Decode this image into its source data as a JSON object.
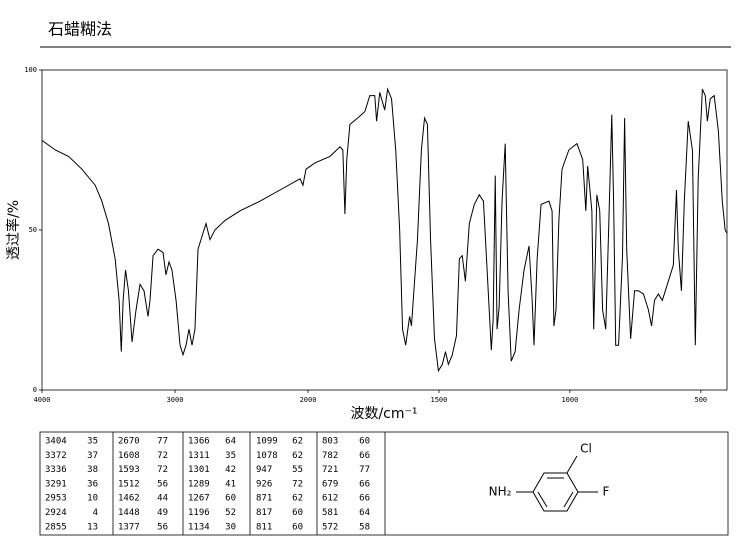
{
  "title": "石蜡糊法",
  "chart_data": {
    "type": "line",
    "xlabel": "波数/cm⁻¹",
    "ylabel": "透过率/%",
    "xlim": [
      4000,
      400
    ],
    "ylim": [
      0,
      100
    ],
    "x_scale_change": 2000,
    "xticks": [
      4000,
      3000,
      2000,
      1500,
      1000,
      500
    ],
    "yticks": [
      0,
      50,
      100
    ],
    "color": "#000000",
    "x": [
      4000,
      3900,
      3800,
      3700,
      3600,
      3550,
      3500,
      3450,
      3420,
      3404,
      3390,
      3372,
      3350,
      3323,
      3293,
      3263,
      3233,
      3203,
      3188,
      3165,
      3128,
      3090,
      3068,
      3045,
      3023,
      2992,
      2962,
      2940,
      2917,
      2895,
      2872,
      2850,
      2827,
      2797,
      2767,
      2737,
      2700,
      2624,
      2511,
      2361,
      2211,
      2060,
      2038,
      2015,
      1973,
      1916,
      1878,
      1867,
      1859,
      1852,
      1840,
      1810,
      1783,
      1764,
      1745,
      1738,
      1726,
      1707,
      1696,
      1681,
      1665,
      1650,
      1639,
      1627,
      1612,
      1605,
      1582,
      1567,
      1555,
      1544,
      1532,
      1517,
      1502,
      1487,
      1475,
      1464,
      1449,
      1433,
      1422,
      1411,
      1399,
      1384,
      1365,
      1346,
      1330,
      1308,
      1300,
      1293,
      1285,
      1278,
      1270,
      1259,
      1247,
      1236,
      1224,
      1209,
      1194,
      1175,
      1156,
      1144,
      1137,
      1125,
      1110,
      1080,
      1068,
      1061,
      1053,
      1042,
      1030,
      1004,
      973,
      951,
      939,
      932,
      916,
      909,
      897,
      886,
      875,
      863,
      852,
      840,
      833,
      825,
      814,
      799,
      791,
      783,
      768,
      753,
      738,
      719,
      700,
      688,
      677,
      662,
      647,
      624,
      605,
      593,
      586,
      574,
      563,
      548,
      532,
      521,
      510,
      494,
      483,
      475,
      464,
      449,
      433,
      418,
      407,
      400
    ],
    "values": [
      78,
      75,
      73,
      69,
      64,
      59,
      52,
      41,
      28,
      12,
      28,
      37.5,
      31,
      15,
      25,
      33,
      31,
      23,
      28,
      42,
      44,
      43,
      36,
      40,
      37.5,
      28,
      14,
      11,
      14,
      19,
      14,
      19,
      44,
      48,
      52,
      47,
      50,
      53,
      56,
      59,
      62.5,
      66,
      64,
      69,
      71,
      73,
      76,
      75,
      55,
      72,
      83,
      85,
      87,
      92,
      92,
      84,
      93,
      87.5,
      94,
      91,
      75,
      50,
      19,
      14,
      23,
      20,
      47,
      75,
      85,
      83,
      47,
      16,
      6,
      8,
      12,
      8,
      11,
      17,
      41,
      42,
      34,
      52,
      58,
      61,
      59,
      25,
      12.5,
      22,
      67,
      19,
      26,
      59,
      77,
      31,
      9,
      12,
      25,
      37.5,
      45,
      28,
      14,
      41,
      58,
      59,
      56,
      20,
      25,
      53,
      69,
      75,
      77,
      72,
      56,
      70,
      56,
      19,
      61,
      56,
      25,
      19,
      50,
      86,
      59,
      14,
      14,
      42,
      85,
      44,
      16,
      31,
      31,
      30,
      25,
      20,
      28,
      30,
      28,
      34,
      39,
      62.5,
      44,
      31,
      59,
      84,
      75,
      14,
      66,
      94,
      92,
      84,
      91,
      92,
      81,
      59,
      50,
      49
    ]
  },
  "peak_table": {
    "columns": [
      [
        [
          3404,
          35
        ],
        [
          3372,
          37
        ],
        [
          3336,
          38
        ],
        [
          3291,
          36
        ],
        [
          2953,
          10
        ],
        [
          2924,
          4
        ],
        [
          2855,
          13
        ]
      ],
      [
        [
          2670,
          77
        ],
        [
          1608,
          72
        ],
        [
          1593,
          72
        ],
        [
          1512,
          56
        ],
        [
          1462,
          44
        ],
        [
          1448,
          49
        ],
        [
          1377,
          56
        ]
      ],
      [
        [
          1366,
          64
        ],
        [
          1311,
          35
        ],
        [
          1301,
          42
        ],
        [
          1289,
          41
        ],
        [
          1267,
          60
        ],
        [
          1196,
          52
        ],
        [
          1134,
          30
        ]
      ],
      [
        [
          1099,
          62
        ],
        [
          1078,
          62
        ],
        [
          947,
          55
        ],
        [
          926,
          72
        ],
        [
          871,
          62
        ],
        [
          817,
          60
        ],
        [
          811,
          60
        ]
      ],
      [
        [
          803,
          60
        ],
        [
          782,
          66
        ],
        [
          721,
          77
        ],
        [
          679,
          66
        ],
        [
          612,
          66
        ],
        [
          581,
          64
        ],
        [
          572,
          58
        ]
      ]
    ]
  },
  "structure": {
    "cl": "Cl",
    "f": "F",
    "nh2": "NH₂"
  }
}
